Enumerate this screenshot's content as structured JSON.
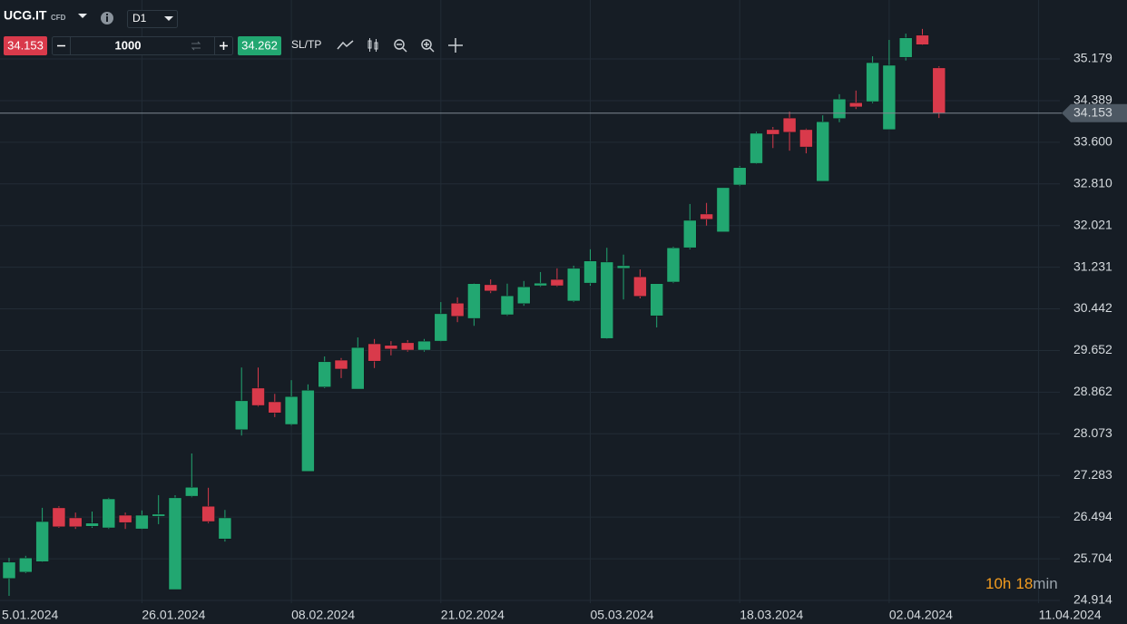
{
  "toolbar": {
    "symbol": "UCG.IT",
    "symbol_tag": "CFD",
    "timeframe": "D1",
    "sell_price": 34.153,
    "quantity": 1000,
    "buy_price": 34.262,
    "sl_tp": "SL/TP"
  },
  "countdown": {
    "hours": "10h",
    "minutes": "18",
    "unit": "min"
  },
  "chart_data": {
    "type": "candlestick",
    "categories": [
      "5.01.2024",
      null,
      null,
      null,
      null,
      null,
      null,
      null,
      null,
      "26.01.2024",
      null,
      null,
      null,
      null,
      null,
      null,
      null,
      null,
      "08.02.2024",
      null,
      null,
      null,
      null,
      null,
      null,
      null,
      null,
      "21.02.2024",
      null,
      null,
      null,
      null,
      null,
      null,
      null,
      null,
      "05.03.2024",
      null,
      null,
      null,
      null,
      null,
      null,
      null,
      null,
      "18.03.2024",
      null,
      null,
      null,
      null,
      null,
      null,
      null,
      null,
      "02.04.2024",
      null,
      null,
      null,
      null,
      null,
      null,
      null,
      null,
      "11.04.2024"
    ],
    "open": [
      null,
      25.33,
      25.45,
      25.65,
      26.67,
      26.48,
      26.32,
      26.29,
      26.53,
      26.27,
      26.51,
      25.12,
      26.89,
      26.7,
      26.08,
      28.15,
      28.94,
      28.68,
      28.25,
      27.36,
      28.96,
      29.47,
      28.92,
      29.78,
      29.75,
      29.8,
      29.66,
      29.83,
      30.55,
      30.26,
      30.9,
      30.33,
      30.54,
      30.88,
      31.0,
      30.59,
      30.93,
      29.88,
      31.21,
      31.05,
      30.31,
      30.95,
      31.6,
      32.24,
      31.9,
      32.79,
      33.2,
      33.84,
      34.06,
      33.84,
      32.86,
      34.05,
      34.35,
      34.37,
      33.84,
      35.21,
      35.63,
      35.01,
      null,
      null,
      null,
      null,
      null,
      null
    ],
    "high": [
      null,
      25.72,
      25.76,
      26.67,
      26.7,
      26.58,
      26.6,
      26.86,
      26.58,
      26.62,
      26.91,
      26.91,
      27.7,
      27.05,
      26.63,
      29.33,
      29.33,
      28.83,
      29.09,
      29.01,
      29.54,
      29.51,
      29.9,
      29.87,
      29.83,
      29.85,
      29.87,
      30.57,
      30.66,
      30.93,
      31.0,
      30.92,
      30.97,
      31.14,
      31.21,
      31.26,
      31.57,
      31.6,
      31.47,
      31.19,
      30.92,
      31.62,
      32.43,
      32.45,
      32.74,
      33.15,
      33.8,
      33.89,
      34.18,
      33.86,
      34.11,
      34.51,
      34.58,
      35.23,
      35.54,
      35.66,
      35.75,
      35.04,
      null,
      null,
      null,
      null,
      null,
      null
    ],
    "low": [
      null,
      25.0,
      25.43,
      25.64,
      26.29,
      26.27,
      26.29,
      26.27,
      26.27,
      26.26,
      26.36,
      25.12,
      26.87,
      26.38,
      26.03,
      28.04,
      28.59,
      28.39,
      28.23,
      27.36,
      28.94,
      29.13,
      28.92,
      29.32,
      29.56,
      29.63,
      29.63,
      29.82,
      30.19,
      30.12,
      30.74,
      30.31,
      30.5,
      30.86,
      30.86,
      30.57,
      30.88,
      29.87,
      30.62,
      30.64,
      30.09,
      30.93,
      31.57,
      32.02,
      31.9,
      32.77,
      33.19,
      33.49,
      33.44,
      33.39,
      32.86,
      33.98,
      34.23,
      34.34,
      33.84,
      35.15,
      35.44,
      34.06,
      null,
      null,
      null,
      null,
      null,
      null
    ],
    "close": [
      null,
      25.64,
      25.72,
      26.41,
      26.31,
      26.31,
      26.38,
      26.84,
      26.39,
      26.53,
      26.55,
      26.86,
      27.06,
      26.41,
      26.48,
      28.7,
      28.61,
      28.47,
      28.78,
      28.9,
      29.44,
      29.3,
      29.71,
      29.45,
      29.68,
      29.66,
      29.83,
      30.35,
      30.3,
      30.92,
      30.78,
      30.69,
      30.86,
      30.93,
      30.88,
      31.21,
      31.35,
      31.33,
      31.26,
      30.68,
      30.92,
      31.6,
      32.12,
      32.14,
      32.74,
      33.12,
      33.77,
      33.75,
      33.79,
      33.51,
      33.99,
      34.42,
      34.27,
      35.11,
      35.06,
      35.58,
      35.45,
      34.153,
      null,
      null,
      null,
      null,
      null,
      null
    ],
    "up_color": "#22a771",
    "down_color": "#d93a4b",
    "current_price": 34.153,
    "ylim": [
      24.863,
      36.297
    ],
    "yticks": [
      35.179,
      34.389,
      {
        "value": 33.6,
        "label": "33.600"
      },
      {
        "value": 32.81,
        "label": "32.810"
      },
      32.021,
      31.231,
      30.442,
      29.652,
      28.862,
      28.073,
      27.283,
      26.494,
      25.704,
      24.914
    ],
    "grid": true
  }
}
